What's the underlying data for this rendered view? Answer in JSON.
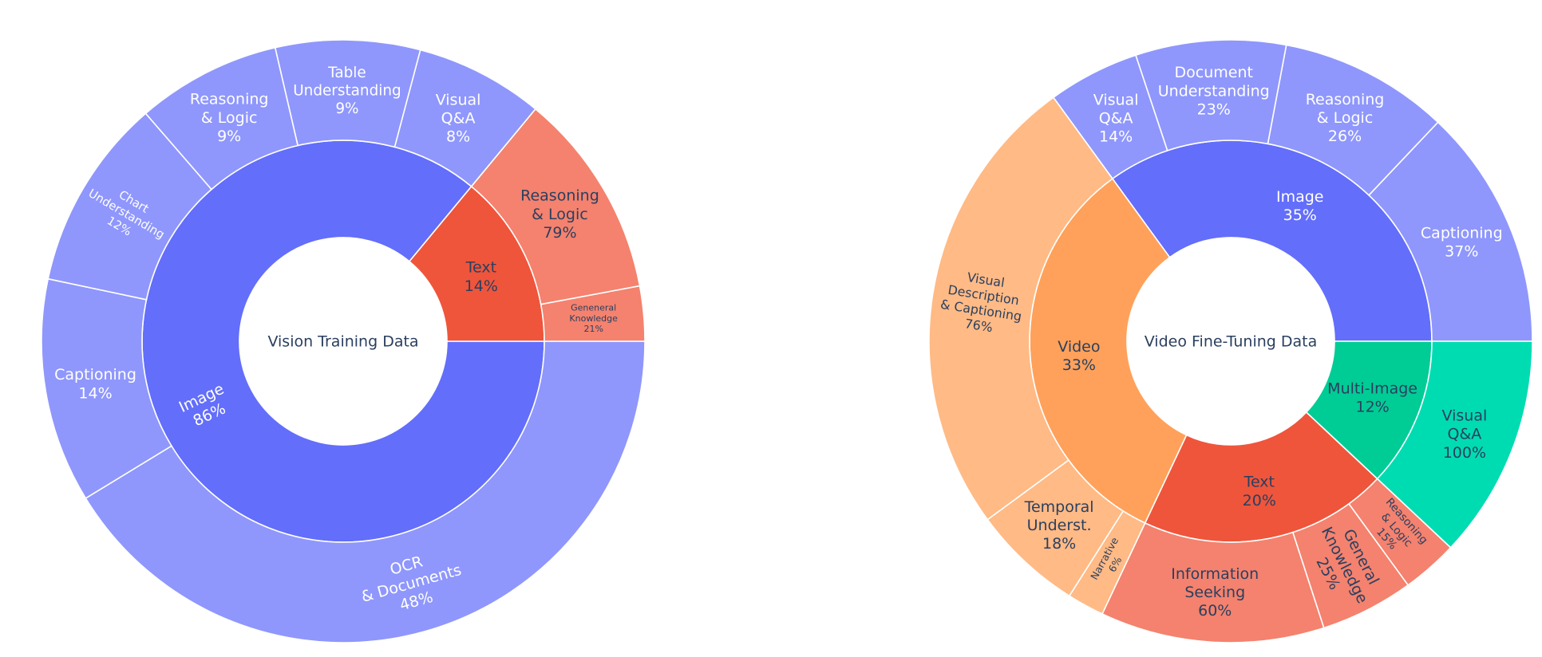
{
  "chart_data": [
    {
      "type": "sunburst",
      "title": "Vision Training Data",
      "start_angle_deg": 0,
      "direction": "clockwise",
      "children": [
        {
          "label": "Image",
          "percent_label": "86%",
          "value": 86,
          "color": "#636efa",
          "child_color": "#8f97fc",
          "label_text_color": "#ffffff",
          "label_orientation": "radial",
          "children": [
            {
              "label": "OCR\n& Documents",
              "percent_label": "48%",
              "value": 48,
              "label_text_color": "#ffffff",
              "label_orientation": "tangential"
            },
            {
              "label": "Captioning",
              "percent_label": "14%",
              "value": 14,
              "label_text_color": "#ffffff",
              "label_orientation": "horizontal"
            },
            {
              "label": "Chart\nUnderstanding",
              "percent_label": "12%",
              "value": 12,
              "label_text_color": "#ffffff",
              "label_orientation": "radial"
            },
            {
              "label": "Reasoning\n& Logic",
              "percent_label": "9%",
              "value": 9,
              "label_text_color": "#ffffff",
              "label_orientation": "horizontal"
            },
            {
              "label": "Table\nUnderstanding",
              "percent_label": "9%",
              "value": 9,
              "label_text_color": "#ffffff",
              "label_orientation": "horizontal"
            },
            {
              "label": "Visual\nQ&A",
              "percent_label": "8%",
              "value": 8,
              "label_text_color": "#ffffff",
              "label_orientation": "horizontal"
            }
          ]
        },
        {
          "label": "Text",
          "percent_label": "14%",
          "value": 14,
          "color": "#ef553b",
          "child_color": "#f4826e",
          "label_text_color": "#2a3f5f",
          "label_orientation": "horizontal",
          "children": [
            {
              "label": "Reasoning\n& Logic",
              "percent_label": "79%",
              "value": 79,
              "label_text_color": "#2a3f5f",
              "label_orientation": "horizontal"
            },
            {
              "label": "Geneneral\nKnowledge",
              "percent_label": "21%",
              "value": 21,
              "label_text_color": "#2a3f5f",
              "label_orientation": "horizontal"
            }
          ]
        }
      ]
    },
    {
      "type": "sunburst",
      "title": "Video Fine-Tuning Data",
      "start_angle_deg": 0,
      "direction": "counterclockwise",
      "children": [
        {
          "label": "Image",
          "percent_label": "35%",
          "value": 35,
          "color": "#636efa",
          "child_color": "#8f97fc",
          "label_text_color": "#ffffff",
          "label_orientation": "horizontal",
          "children": [
            {
              "label": "Captioning",
              "percent_label": "37%",
              "value": 37,
              "label_text_color": "#ffffff",
              "label_orientation": "horizontal"
            },
            {
              "label": "Reasoning\n& Logic",
              "percent_label": "26%",
              "value": 26,
              "label_text_color": "#ffffff",
              "label_orientation": "horizontal"
            },
            {
              "label": "Document\nUnderstanding",
              "percent_label": "23%",
              "value": 23,
              "label_text_color": "#ffffff",
              "label_orientation": "horizontal"
            },
            {
              "label": "Visual\nQ&A",
              "percent_label": "14%",
              "value": 14,
              "label_text_color": "#ffffff",
              "label_orientation": "horizontal"
            }
          ]
        },
        {
          "label": "Video",
          "percent_label": "33%",
          "value": 33,
          "color": "#ffa15a",
          "child_color": "#ffba85",
          "label_text_color": "#2a3f5f",
          "label_orientation": "horizontal",
          "children": [
            {
              "label": "Visual\nDescription\n& Captioning",
              "percent_label": "76%",
              "value": 76,
              "label_text_color": "#2a3f5f",
              "label_orientation": "radial"
            },
            {
              "label": "Temporal\nUnderst.",
              "percent_label": "18%",
              "value": 18,
              "label_text_color": "#2a3f5f",
              "label_orientation": "horizontal"
            },
            {
              "label": "Narrative",
              "percent_label": "6%",
              "value": 6,
              "label_text_color": "#2a3f5f",
              "label_orientation": "radial"
            }
          ]
        },
        {
          "label": "Text",
          "percent_label": "20%",
          "value": 20,
          "color": "#ef553b",
          "child_color": "#f4826e",
          "label_text_color": "#2a3f5f",
          "label_orientation": "horizontal",
          "children": [
            {
              "label": "Information\nSeeking",
              "percent_label": "60%",
              "value": 60,
              "label_text_color": "#2a3f5f",
              "label_orientation": "horizontal"
            },
            {
              "label": "General\nKnowledge",
              "percent_label": "25%",
              "value": 25,
              "label_text_color": "#2a3f5f",
              "label_orientation": "radial"
            },
            {
              "label": "Reasoning\n& Logic",
              "percent_label": "15%",
              "value": 15,
              "label_text_color": "#2a3f5f",
              "label_orientation": "radial"
            }
          ]
        },
        {
          "label": "Multi-Image",
          "percent_label": "12%",
          "value": 12,
          "color": "#00cc96",
          "child_color": "#00dcb2",
          "label_text_color": "#2a3f5f",
          "label_orientation": "horizontal",
          "children": [
            {
              "label": "Visual\nQ&A",
              "percent_label": "100%",
              "value": 100,
              "label_text_color": "#2a3f5f",
              "label_orientation": "horizontal"
            }
          ]
        }
      ]
    }
  ]
}
